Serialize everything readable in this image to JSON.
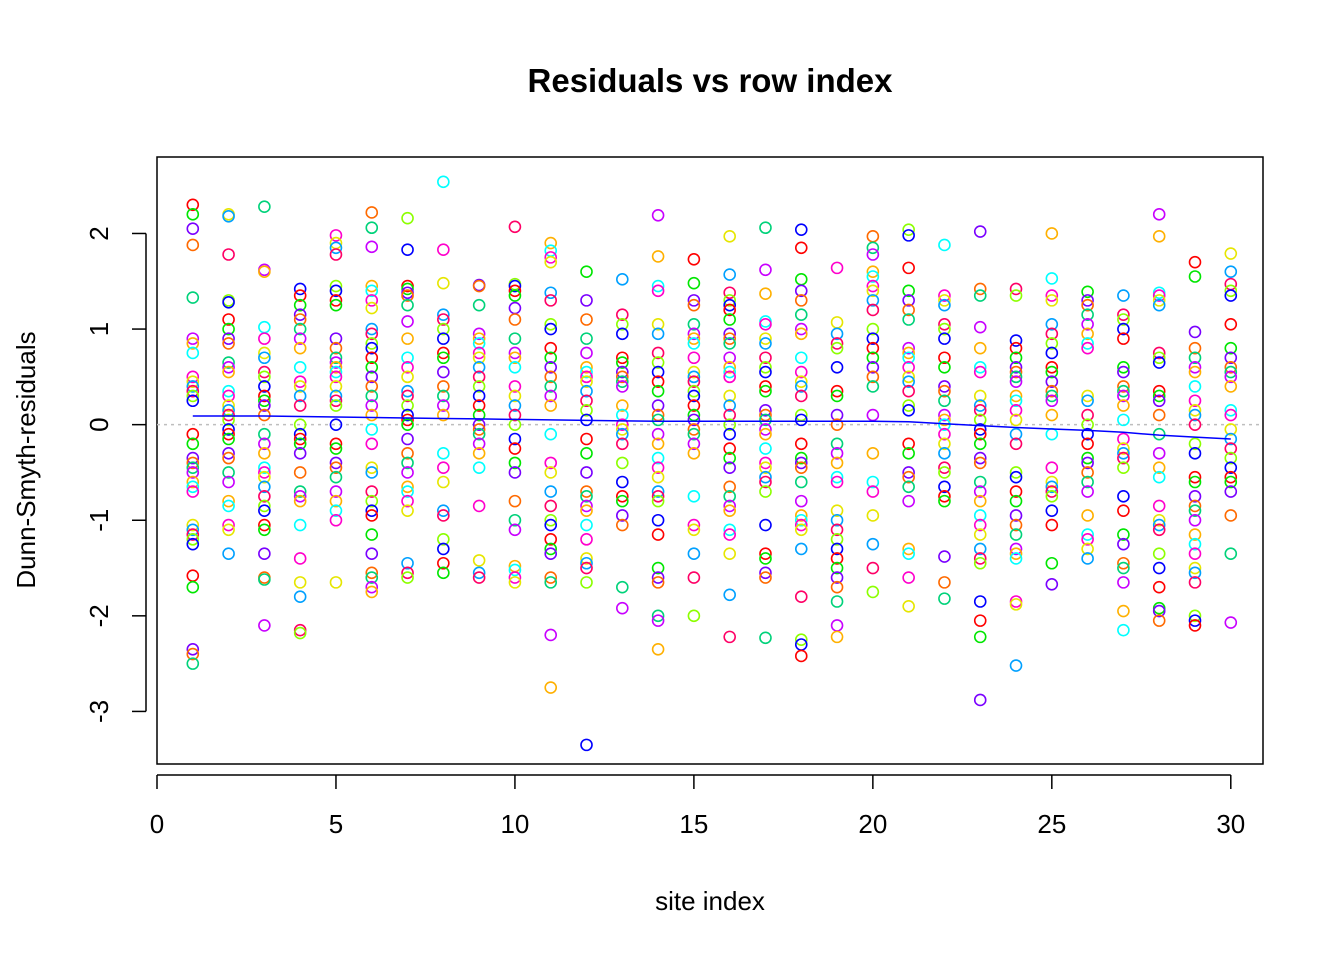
{
  "chart_data": {
    "type": "scatter",
    "title": "Residuals vs row index",
    "xlabel": "site index",
    "ylabel": "Dunn-Smyth-residuals",
    "xlim": [
      0.0,
      30.9
    ],
    "ylim": [
      -3.55,
      2.8
    ],
    "x_ticks": [
      0,
      5,
      10,
      15,
      20,
      25,
      30
    ],
    "y_ticks": [
      -3,
      -2,
      -1,
      0,
      1,
      2
    ],
    "x_tick_labels": [
      "0",
      "5",
      "10",
      "15",
      "20",
      "25",
      "30"
    ],
    "y_tick_labels": [
      "-3",
      "-2",
      "-1",
      "0",
      "1",
      "2"
    ],
    "reference_line": {
      "y": 0,
      "style": "dotted",
      "color": "#bebebe"
    },
    "point_colors": [
      "#ff0000",
      "#ff6a00",
      "#ffb000",
      "#e6e600",
      "#8cff00",
      "#00e600",
      "#00d27a",
      "#00ffff",
      "#00a0ff",
      "#0000ff",
      "#7a00ff",
      "#c800ff",
      "#ff00cc",
      "#ff0066"
    ],
    "series": [
      {
        "x": 1,
        "y": [
          2.3,
          2.2,
          2.05,
          1.88,
          1.33,
          0.9,
          0.85,
          0.75,
          0.5,
          0.45,
          0.4,
          0.35,
          0.3,
          0.25,
          -0.1,
          -0.2,
          -0.35,
          -0.4,
          -0.45,
          -0.5,
          -0.6,
          -0.65,
          -0.7,
          -1.05,
          -1.1,
          -1.15,
          -1.2,
          -1.25,
          -1.58,
          -1.7,
          -2.35,
          -2.4,
          -2.5
        ]
      },
      {
        "x": 2,
        "y": [
          2.2,
          2.18,
          1.78,
          1.3,
          1.28,
          1.1,
          1.0,
          0.9,
          0.85,
          0.65,
          0.6,
          0.55,
          0.35,
          0.3,
          0.2,
          0.15,
          0.1,
          0.05,
          -0.05,
          -0.1,
          -0.15,
          -0.3,
          -0.35,
          -0.5,
          -0.6,
          -0.8,
          -0.85,
          -1.05,
          -1.1,
          -1.35
        ]
      },
      {
        "x": 3,
        "y": [
          2.28,
          1.62,
          1.6,
          1.02,
          0.9,
          0.75,
          0.7,
          0.55,
          0.5,
          0.4,
          0.3,
          0.25,
          0.2,
          0.1,
          -0.1,
          -0.2,
          -0.3,
          -0.45,
          -0.5,
          -0.55,
          -0.65,
          -0.75,
          -0.85,
          -0.9,
          -1.05,
          -1.1,
          -1.35,
          -1.6,
          -1.62,
          -2.1
        ]
      },
      {
        "x": 4,
        "y": [
          1.42,
          1.35,
          1.25,
          1.15,
          1.1,
          1.0,
          0.9,
          0.8,
          0.6,
          0.45,
          0.4,
          0.3,
          0.2,
          0.0,
          -0.1,
          -0.15,
          -0.2,
          -0.3,
          -0.5,
          -0.7,
          -0.75,
          -0.8,
          -1.05,
          -1.4,
          -1.65,
          -1.8,
          -2.15,
          -2.18
        ]
      },
      {
        "x": 5,
        "y": [
          1.98,
          1.9,
          1.85,
          1.78,
          1.45,
          1.4,
          1.3,
          1.25,
          0.9,
          0.8,
          0.7,
          0.65,
          0.6,
          0.55,
          0.5,
          0.4,
          0.3,
          0.25,
          0.2,
          0.0,
          -0.2,
          -0.25,
          -0.4,
          -0.45,
          -0.55,
          -0.7,
          -0.8,
          -0.9,
          -1.0,
          -1.65
        ]
      },
      {
        "x": 6,
        "y": [
          2.22,
          2.06,
          1.86,
          1.45,
          1.4,
          1.3,
          1.22,
          1.0,
          0.95,
          0.85,
          0.8,
          0.7,
          0.6,
          0.5,
          0.4,
          0.3,
          0.2,
          0.1,
          -0.05,
          -0.2,
          -0.45,
          -0.5,
          -0.7,
          -0.8,
          -0.9,
          -0.95,
          -1.15,
          -1.35,
          -1.55,
          -1.6,
          -1.7,
          -1.75
        ]
      },
      {
        "x": 7,
        "y": [
          2.16,
          1.83,
          1.45,
          1.42,
          1.38,
          1.35,
          1.25,
          1.08,
          0.9,
          0.7,
          0.6,
          0.5,
          0.35,
          0.3,
          0.2,
          0.1,
          0.05,
          0.0,
          -0.15,
          -0.3,
          -0.4,
          -0.5,
          -0.65,
          -0.7,
          -0.8,
          -0.9,
          -1.45,
          -1.55,
          -1.6
        ]
      },
      {
        "x": 8,
        "y": [
          2.54,
          1.83,
          1.48,
          1.15,
          1.1,
          1.0,
          0.9,
          0.75,
          0.7,
          0.55,
          0.4,
          0.3,
          0.2,
          0.1,
          -0.3,
          -0.45,
          -0.6,
          -0.9,
          -0.95,
          -1.2,
          -1.3,
          -1.45,
          -1.55
        ]
      },
      {
        "x": 9,
        "y": [
          1.46,
          1.45,
          1.25,
          0.95,
          0.9,
          0.85,
          0.75,
          0.7,
          0.6,
          0.5,
          0.4,
          0.3,
          0.2,
          0.1,
          0.0,
          -0.05,
          -0.1,
          -0.2,
          -0.3,
          -0.45,
          -0.85,
          -1.42,
          -1.55,
          -1.6
        ]
      },
      {
        "x": 10,
        "y": [
          2.07,
          1.47,
          1.45,
          1.4,
          1.35,
          1.22,
          1.1,
          0.9,
          0.75,
          0.7,
          0.6,
          0.4,
          0.3,
          0.2,
          0.1,
          0.0,
          -0.15,
          -0.25,
          -0.4,
          -0.5,
          -0.8,
          -1.0,
          -1.1,
          -1.48,
          -1.52,
          -1.6,
          -1.65
        ]
      },
      {
        "x": 11,
        "y": [
          1.9,
          1.82,
          1.75,
          1.7,
          1.38,
          1.3,
          1.05,
          1.0,
          0.8,
          0.7,
          0.6,
          0.5,
          0.4,
          0.3,
          0.2,
          -0.1,
          -0.4,
          -0.5,
          -0.7,
          -0.85,
          -1.0,
          -1.05,
          -1.2,
          -1.3,
          -1.35,
          -1.6,
          -1.65,
          -2.2,
          -2.75
        ]
      },
      {
        "x": 12,
        "y": [
          1.6,
          1.3,
          1.1,
          0.9,
          0.75,
          0.6,
          0.55,
          0.5,
          0.45,
          0.35,
          0.25,
          0.15,
          0.05,
          -0.15,
          -0.3,
          -0.5,
          -0.7,
          -0.75,
          -0.85,
          -0.9,
          -1.05,
          -1.2,
          -1.4,
          -1.45,
          -1.5,
          -1.65,
          -3.35
        ]
      },
      {
        "x": 13,
        "y": [
          1.52,
          1.15,
          1.05,
          0.95,
          0.7,
          0.65,
          0.55,
          0.5,
          0.45,
          0.4,
          0.2,
          0.1,
          0.0,
          -0.05,
          -0.1,
          -0.2,
          -0.4,
          -0.6,
          -0.75,
          -0.8,
          -0.95,
          -1.05,
          -1.7,
          -1.92
        ]
      },
      {
        "x": 14,
        "y": [
          2.19,
          1.76,
          1.45,
          1.4,
          1.05,
          0.95,
          0.75,
          0.65,
          0.55,
          0.45,
          0.35,
          0.2,
          0.1,
          0.05,
          -0.1,
          -0.2,
          -0.35,
          -0.45,
          -0.55,
          -0.7,
          -0.75,
          -0.8,
          -1.0,
          -1.15,
          -1.5,
          -1.6,
          -1.65,
          -2.0,
          -2.05,
          -2.35
        ]
      },
      {
        "x": 15,
        "y": [
          1.73,
          1.48,
          1.3,
          1.25,
          1.05,
          0.95,
          0.9,
          0.85,
          0.7,
          0.55,
          0.5,
          0.45,
          0.35,
          0.3,
          0.2,
          0.1,
          0.05,
          -0.05,
          -0.1,
          -0.2,
          -0.3,
          -0.75,
          -1.05,
          -1.1,
          -1.35,
          -1.6,
          -2.0
        ]
      },
      {
        "x": 16,
        "y": [
          1.97,
          1.57,
          1.38,
          1.3,
          1.25,
          1.2,
          1.1,
          0.95,
          0.9,
          0.85,
          0.7,
          0.6,
          0.55,
          0.5,
          0.3,
          0.2,
          0.1,
          0.0,
          -0.1,
          -0.25,
          -0.35,
          -0.45,
          -0.65,
          -0.75,
          -0.85,
          -0.9,
          -1.1,
          -1.15,
          -1.35,
          -1.78,
          -2.22
        ]
      },
      {
        "x": 17,
        "y": [
          2.06,
          1.62,
          1.37,
          1.08,
          1.05,
          0.9,
          0.85,
          0.7,
          0.6,
          0.55,
          0.4,
          0.35,
          0.15,
          0.1,
          0.05,
          -0.05,
          -0.1,
          -0.25,
          -0.4,
          -0.45,
          -0.55,
          -0.6,
          -0.7,
          -1.05,
          -1.35,
          -1.4,
          -1.55,
          -1.6,
          -2.23
        ]
      },
      {
        "x": 18,
        "y": [
          2.04,
          1.85,
          1.52,
          1.4,
          1.3,
          1.15,
          1.0,
          0.95,
          0.7,
          0.55,
          0.45,
          0.4,
          0.3,
          0.1,
          0.05,
          -0.2,
          -0.35,
          -0.4,
          -0.45,
          -0.6,
          -0.8,
          -0.95,
          -1.0,
          -1.05,
          -1.1,
          -1.3,
          -1.8,
          -2.25,
          -2.3,
          -2.42
        ]
      },
      {
        "x": 19,
        "y": [
          1.64,
          1.07,
          0.95,
          0.85,
          0.8,
          0.6,
          0.35,
          0.3,
          0.1,
          0.0,
          -0.2,
          -0.3,
          -0.4,
          -0.55,
          -0.6,
          -0.9,
          -1.0,
          -1.1,
          -1.2,
          -1.3,
          -1.4,
          -1.5,
          -1.6,
          -1.7,
          -1.85,
          -2.1,
          -2.22
        ]
      },
      {
        "x": 20,
        "y": [
          1.97,
          1.85,
          1.78,
          1.6,
          1.55,
          1.45,
          1.4,
          1.3,
          1.2,
          1.0,
          0.9,
          0.8,
          0.7,
          0.6,
          0.5,
          0.4,
          0.1,
          -0.3,
          -0.6,
          -0.7,
          -0.95,
          -1.25,
          -1.5,
          -1.75
        ]
      },
      {
        "x": 21,
        "y": [
          2.04,
          1.98,
          1.64,
          1.4,
          1.3,
          1.2,
          1.1,
          0.8,
          0.75,
          0.7,
          0.6,
          0.5,
          0.45,
          0.35,
          0.2,
          0.15,
          -0.2,
          -0.3,
          -0.5,
          -0.55,
          -0.65,
          -0.8,
          -1.3,
          -1.35,
          -1.6,
          -1.9
        ]
      },
      {
        "x": 22,
        "y": [
          1.88,
          1.35,
          1.3,
          1.25,
          1.05,
          1.0,
          0.9,
          0.7,
          0.6,
          0.4,
          0.35,
          0.25,
          0.1,
          0.05,
          0.0,
          -0.1,
          -0.2,
          -0.3,
          -0.45,
          -0.5,
          -0.65,
          -0.75,
          -0.8,
          -1.38,
          -1.65,
          -1.82
        ]
      },
      {
        "x": 23,
        "y": [
          2.02,
          1.42,
          1.35,
          1.02,
          0.8,
          0.6,
          0.55,
          0.3,
          0.2,
          0.15,
          0.05,
          -0.05,
          -0.1,
          -0.2,
          -0.35,
          -0.4,
          -0.6,
          -0.7,
          -0.8,
          -0.95,
          -1.05,
          -1.15,
          -1.3,
          -1.4,
          -1.45,
          -1.85,
          -2.05,
          -2.22,
          -2.88
        ]
      },
      {
        "x": 24,
        "y": [
          1.42,
          1.35,
          0.88,
          0.8,
          0.7,
          0.6,
          0.55,
          0.5,
          0.45,
          0.3,
          0.25,
          0.15,
          0.05,
          -0.1,
          -0.2,
          -0.5,
          -0.55,
          -0.7,
          -0.8,
          -0.95,
          -1.05,
          -1.15,
          -1.3,
          -1.35,
          -1.4,
          -1.85,
          -1.88,
          -2.52
        ]
      },
      {
        "x": 25,
        "y": [
          2.0,
          1.53,
          1.35,
          1.3,
          1.05,
          0.95,
          0.85,
          0.75,
          0.6,
          0.55,
          0.45,
          0.35,
          0.3,
          0.25,
          0.1,
          -0.1,
          -0.45,
          -0.6,
          -0.65,
          -0.7,
          -0.75,
          -0.9,
          -1.05,
          -1.45,
          -1.67
        ]
      },
      {
        "x": 26,
        "y": [
          1.39,
          1.3,
          1.25,
          1.15,
          1.05,
          0.95,
          0.85,
          0.8,
          0.3,
          0.25,
          0.1,
          0.0,
          -0.1,
          -0.2,
          -0.35,
          -0.4,
          -0.5,
          -0.6,
          -0.7,
          -0.95,
          -1.15,
          -1.2,
          -1.3,
          -1.4
        ]
      },
      {
        "x": 27,
        "y": [
          1.35,
          1.15,
          1.1,
          1.0,
          0.9,
          0.6,
          0.55,
          0.4,
          0.35,
          0.3,
          0.2,
          0.05,
          -0.15,
          -0.25,
          -0.3,
          -0.35,
          -0.45,
          -0.75,
          -0.9,
          -1.15,
          -1.25,
          -1.45,
          -1.5,
          -1.65,
          -1.95,
          -2.15
        ]
      },
      {
        "x": 28,
        "y": [
          2.2,
          1.97,
          1.38,
          1.35,
          1.3,
          1.25,
          0.75,
          0.7,
          0.65,
          0.35,
          0.3,
          0.25,
          0.1,
          -0.1,
          -0.3,
          -0.45,
          -0.55,
          -0.85,
          -1.0,
          -1.05,
          -1.1,
          -1.35,
          -1.5,
          -1.7,
          -1.92,
          -1.95,
          -2.05
        ]
      },
      {
        "x": 29,
        "y": [
          1.7,
          1.55,
          0.97,
          0.8,
          0.7,
          0.6,
          0.55,
          0.4,
          0.25,
          0.15,
          0.1,
          0.0,
          -0.2,
          -0.3,
          -0.55,
          -0.6,
          -0.75,
          -0.85,
          -0.9,
          -1.0,
          -1.15,
          -1.25,
          -1.35,
          -1.5,
          -1.55,
          -1.65,
          -2.0,
          -2.05,
          -2.1
        ]
      },
      {
        "x": 30,
        "y": [
          1.79,
          1.6,
          1.47,
          1.4,
          1.35,
          1.05,
          0.8,
          0.7,
          0.6,
          0.55,
          0.5,
          0.4,
          0.15,
          0.1,
          -0.05,
          -0.15,
          -0.25,
          -0.35,
          -0.45,
          -0.55,
          -0.6,
          -0.7,
          -0.95,
          -1.35,
          -2.07
        ]
      }
    ],
    "trend_line": {
      "color": "#0000ff",
      "x": [
        1,
        2,
        3,
        4,
        5,
        6,
        7,
        8,
        9,
        10,
        11,
        12,
        13,
        14,
        15,
        16,
        17,
        18,
        19,
        20,
        21,
        22,
        23,
        24,
        25,
        26,
        27,
        28,
        29,
        30
      ],
      "y": [
        0.09,
        0.09,
        0.09,
        0.085,
        0.08,
        0.075,
        0.07,
        0.065,
        0.06,
        0.055,
        0.05,
        0.045,
        0.04,
        0.035,
        0.035,
        0.035,
        0.035,
        0.035,
        0.035,
        0.035,
        0.03,
        0.01,
        -0.01,
        -0.03,
        -0.045,
        -0.06,
        -0.08,
        -0.11,
        -0.13,
        -0.15
      ]
    },
    "grid": false,
    "legend": "none"
  }
}
